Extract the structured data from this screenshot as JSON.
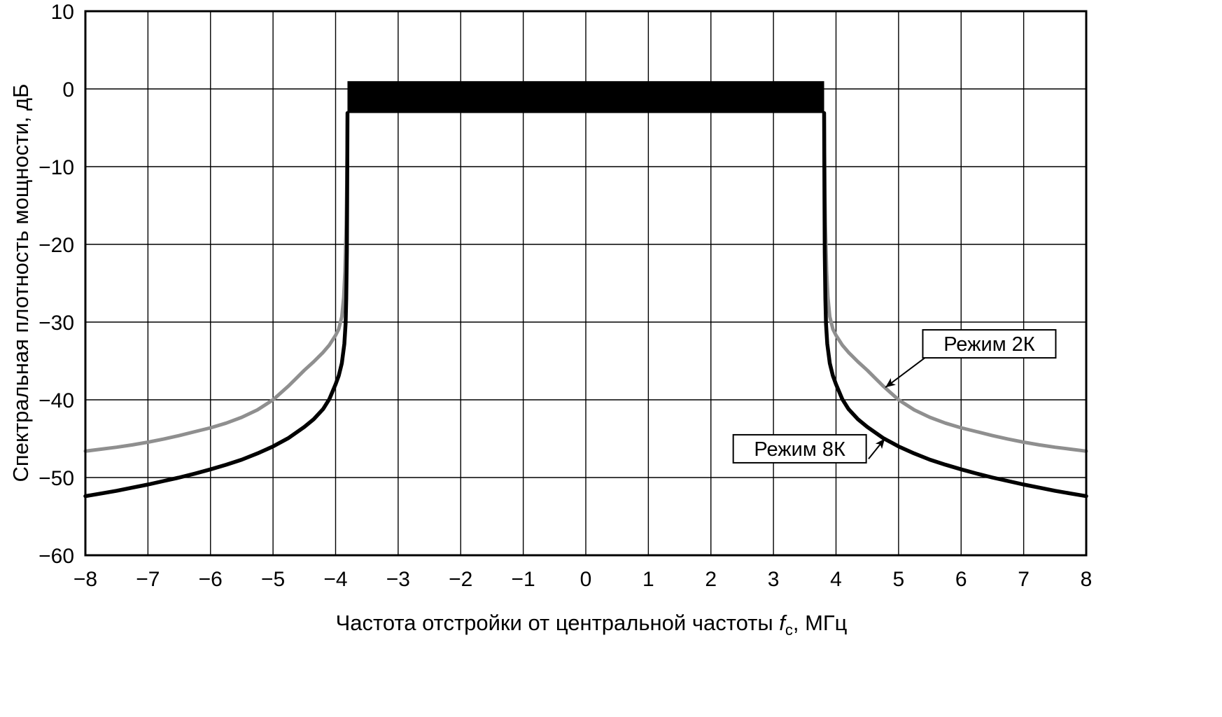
{
  "chart_data": {
    "type": "line",
    "title": "",
    "xlabel": "Частота отстройки от центральной частоты fс, МГц",
    "xlabel_parts": {
      "prefix": "Частота отстройки от центральной частоты ",
      "variable": "f",
      "subscript": "с",
      "suffix": ", МГц"
    },
    "ylabel": "Спектральная плотность мощности, дБ",
    "xlim": [
      -8,
      8
    ],
    "ylim": [
      -60,
      10
    ],
    "x_ticks": [
      {
        "v": -8,
        "label": "−8"
      },
      {
        "v": -7,
        "label": "−7"
      },
      {
        "v": -6,
        "label": "−6"
      },
      {
        "v": -5,
        "label": "−5"
      },
      {
        "v": -4,
        "label": "−4"
      },
      {
        "v": -3,
        "label": "−3"
      },
      {
        "v": -2,
        "label": "−2"
      },
      {
        "v": -1,
        "label": "−1"
      },
      {
        "v": 0,
        "label": "0"
      },
      {
        "v": 1,
        "label": "1"
      },
      {
        "v": 2,
        "label": "2"
      },
      {
        "v": 3,
        "label": "3"
      },
      {
        "v": 4,
        "label": "4"
      },
      {
        "v": 5,
        "label": "5"
      },
      {
        "v": 6,
        "label": "6"
      },
      {
        "v": 7,
        "label": "7"
      },
      {
        "v": 8,
        "label": "8"
      }
    ],
    "y_ticks": [
      {
        "v": 10,
        "label": "10"
      },
      {
        "v": 0,
        "label": "0"
      },
      {
        "v": -10,
        "label": "−10"
      },
      {
        "v": -20,
        "label": "−20"
      },
      {
        "v": -30,
        "label": "−30"
      },
      {
        "v": -40,
        "label": "−40"
      },
      {
        "v": -50,
        "label": "−50"
      },
      {
        "v": -60,
        "label": "−60"
      }
    ],
    "grid": {
      "x_step_mhz": 1,
      "y_step_db": 10,
      "color": "#000000"
    },
    "inband_bar": {
      "x0": -3.81,
      "x1": 3.81,
      "y_top": 1.0,
      "y_bottom": -3.1,
      "color": "#000000"
    },
    "series": [
      {
        "id": "2k",
        "name": "Режим 2К",
        "color": "#8f8f8f",
        "width": 5,
        "segments": [
          [
            [
              -8,
              -46.6
            ],
            [
              -7.75,
              -46.35
            ],
            [
              -7.5,
              -46.1
            ],
            [
              -7.25,
              -45.8
            ],
            [
              -7,
              -45.45
            ],
            [
              -6.75,
              -45.05
            ],
            [
              -6.5,
              -44.6
            ],
            [
              -6.25,
              -44.1
            ],
            [
              -6,
              -43.6
            ],
            [
              -5.75,
              -43.0
            ],
            [
              -5.5,
              -42.25
            ],
            [
              -5.25,
              -41.3
            ],
            [
              -5,
              -40.0
            ],
            [
              -4.75,
              -38.2
            ],
            [
              -4.6,
              -37.0
            ],
            [
              -4.5,
              -36.2
            ],
            [
              -4.35,
              -35.1
            ],
            [
              -4.2,
              -33.9
            ],
            [
              -4.1,
              -32.95
            ],
            [
              -4,
              -31.7
            ],
            [
              -3.95,
              -30.9
            ],
            [
              -3.9,
              -29.3
            ],
            [
              -3.87,
              -26.8
            ],
            [
              -3.85,
              -23.5
            ],
            [
              -3.83,
              -17.5
            ],
            [
              -3.82,
              -12
            ],
            [
              -3.81,
              -3.1
            ]
          ],
          [
            [
              3.81,
              -3.1
            ],
            [
              3.82,
              -12
            ],
            [
              3.83,
              -17.5
            ],
            [
              3.85,
              -23.5
            ],
            [
              3.87,
              -26.8
            ],
            [
              3.9,
              -29.3
            ],
            [
              3.95,
              -30.9
            ],
            [
              4,
              -31.7
            ],
            [
              4.1,
              -32.95
            ],
            [
              4.2,
              -33.9
            ],
            [
              4.35,
              -35.1
            ],
            [
              4.5,
              -36.2
            ],
            [
              4.6,
              -37.0
            ],
            [
              4.75,
              -38.2
            ],
            [
              5,
              -40.0
            ],
            [
              5.25,
              -41.3
            ],
            [
              5.5,
              -42.25
            ],
            [
              5.75,
              -43.0
            ],
            [
              6,
              -43.6
            ],
            [
              6.25,
              -44.1
            ],
            [
              6.5,
              -44.6
            ],
            [
              6.75,
              -45.05
            ],
            [
              7,
              -45.45
            ],
            [
              7.25,
              -45.8
            ],
            [
              7.5,
              -46.1
            ],
            [
              7.75,
              -46.35
            ],
            [
              8,
              -46.6
            ]
          ]
        ]
      },
      {
        "id": "8k",
        "name": "Режим 8К",
        "color": "#000000",
        "width": 5.5,
        "segments": [
          [
            [
              -8,
              -52.4
            ],
            [
              -7.75,
              -52.05
            ],
            [
              -7.5,
              -51.7
            ],
            [
              -7.25,
              -51.3
            ],
            [
              -7,
              -50.9
            ],
            [
              -6.75,
              -50.45
            ],
            [
              -6.5,
              -50.0
            ],
            [
              -6.25,
              -49.5
            ],
            [
              -6,
              -48.95
            ],
            [
              -5.75,
              -48.35
            ],
            [
              -5.5,
              -47.7
            ],
            [
              -5.25,
              -46.9
            ],
            [
              -5,
              -46.0
            ],
            [
              -4.75,
              -44.9
            ],
            [
              -4.5,
              -43.5
            ],
            [
              -4.35,
              -42.5
            ],
            [
              -4.2,
              -41.2
            ],
            [
              -4.1,
              -39.9
            ],
            [
              -4,
              -38.0
            ],
            [
              -3.95,
              -36.9
            ],
            [
              -3.9,
              -35.3
            ],
            [
              -3.86,
              -32.8
            ],
            [
              -3.84,
              -30.2
            ],
            [
              -3.83,
              -27
            ],
            [
              -3.82,
              -21
            ],
            [
              -3.815,
              -14
            ],
            [
              -3.81,
              -3.1
            ]
          ],
          [
            [
              3.81,
              -3.1
            ],
            [
              3.815,
              -14
            ],
            [
              3.82,
              -21
            ],
            [
              3.83,
              -27
            ],
            [
              3.84,
              -30.2
            ],
            [
              3.86,
              -32.8
            ],
            [
              3.9,
              -35.3
            ],
            [
              3.95,
              -36.9
            ],
            [
              4,
              -38.0
            ],
            [
              4.1,
              -39.9
            ],
            [
              4.2,
              -41.2
            ],
            [
              4.35,
              -42.5
            ],
            [
              4.5,
              -43.5
            ],
            [
              4.75,
              -44.9
            ],
            [
              5,
              -46.0
            ],
            [
              5.25,
              -46.9
            ],
            [
              5.5,
              -47.7
            ],
            [
              5.75,
              -48.35
            ],
            [
              6,
              -48.95
            ],
            [
              6.25,
              -49.5
            ],
            [
              6.5,
              -50.0
            ],
            [
              6.75,
              -50.45
            ],
            [
              7,
              -50.9
            ],
            [
              7.25,
              -51.3
            ],
            [
              7.5,
              -51.7
            ],
            [
              7.75,
              -52.05
            ],
            [
              8,
              -52.4
            ]
          ]
        ]
      }
    ],
    "annotations": [
      {
        "label": "Режим 2К",
        "series": "2k",
        "box_center": [
          6.45,
          -32.8
        ],
        "arrow_from": [
          5.42,
          -34.6
        ],
        "arrow_to": [
          4.79,
          -38.4
        ]
      },
      {
        "label": "Режим 8К",
        "series": "8k",
        "box_center": [
          3.42,
          -46.3
        ],
        "arrow_from": [
          4.52,
          -47.6
        ],
        "arrow_to": [
          4.78,
          -45.0
        ]
      }
    ]
  }
}
